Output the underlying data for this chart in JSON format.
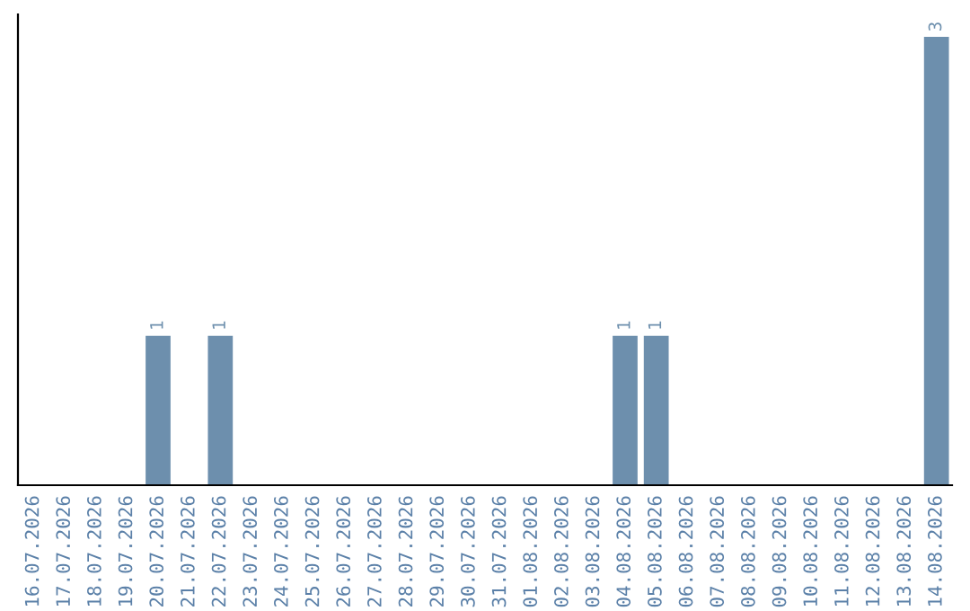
{
  "chart_data": {
    "type": "bar",
    "categories": [
      "16.07.2026",
      "17.07.2026",
      "18.07.2026",
      "19.07.2026",
      "20.07.2026",
      "21.07.2026",
      "22.07.2026",
      "23.07.2026",
      "24.07.2026",
      "25.07.2026",
      "26.07.2026",
      "27.07.2026",
      "28.07.2026",
      "29.07.2026",
      "30.07.2026",
      "31.07.2026",
      "01.08.2026",
      "02.08.2026",
      "03.08.2026",
      "04.08.2026",
      "05.08.2026",
      "06.08.2026",
      "07.08.2026",
      "08.08.2026",
      "09.08.2026",
      "10.08.2026",
      "11.08.2026",
      "12.08.2026",
      "13.08.2026",
      "14.08.2026"
    ],
    "values": [
      0,
      0,
      0,
      0,
      1,
      0,
      1,
      0,
      0,
      0,
      0,
      0,
      0,
      0,
      0,
      0,
      0,
      0,
      0,
      1,
      1,
      0,
      0,
      0,
      0,
      0,
      0,
      0,
      0,
      3
    ],
    "value_labels": [
      null,
      null,
      null,
      null,
      "1",
      null,
      "1",
      null,
      null,
      null,
      null,
      null,
      null,
      null,
      null,
      null,
      null,
      null,
      null,
      "1",
      "1",
      null,
      null,
      null,
      null,
      null,
      null,
      null,
      null,
      "3"
    ],
    "color": "#6d8fad",
    "tick_labels": "x",
    "grid": false,
    "legend": false
  }
}
